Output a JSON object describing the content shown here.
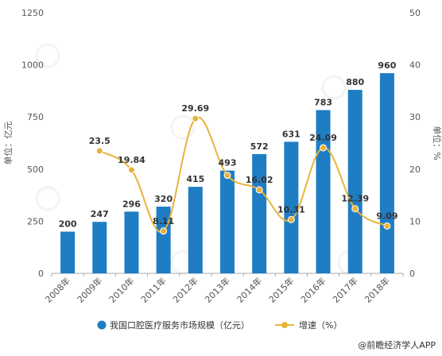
{
  "chart_data": {
    "type": "bar",
    "categories": [
      "2008年",
      "2009年",
      "2010年",
      "2011年",
      "2012年",
      "2013年",
      "2014年",
      "2015年",
      "2016年",
      "2017年",
      "2018年"
    ],
    "series": [
      {
        "name": "我国口腔医疗服务市场规模（亿元）",
        "type": "bar",
        "axis": "left",
        "color": "#1f7dc4",
        "values": [
          200,
          247,
          296,
          320,
          415,
          493,
          572,
          631,
          783,
          880,
          960
        ],
        "labels": [
          "200",
          "247",
          "296",
          "320",
          "415",
          "493",
          "572",
          "631",
          "783",
          "880",
          "960"
        ]
      },
      {
        "name": "增速（%）",
        "type": "line",
        "axis": "right",
        "color": "#e8b33a",
        "values": [
          null,
          23.5,
          19.84,
          8.11,
          29.69,
          18.8,
          16.02,
          10.31,
          24.09,
          12.39,
          9.09
        ],
        "labels": [
          "",
          "23.5",
          "19.84",
          "8.11",
          "29.69",
          "",
          "16.02",
          "10.31",
          "24.09",
          "12.39",
          "9.09"
        ]
      }
    ],
    "y_left": {
      "label": "单位：亿元",
      "min": 0,
      "max": 1250,
      "ticks": [
        0,
        250,
        500,
        750,
        1000,
        1250
      ]
    },
    "y_right": {
      "label": "单位：%",
      "min": 0,
      "max": 50,
      "ticks": [
        0,
        10,
        20,
        30,
        40,
        50
      ]
    },
    "grid": false,
    "legend": "bottom"
  },
  "credit": "@前瞻经济学人APP"
}
